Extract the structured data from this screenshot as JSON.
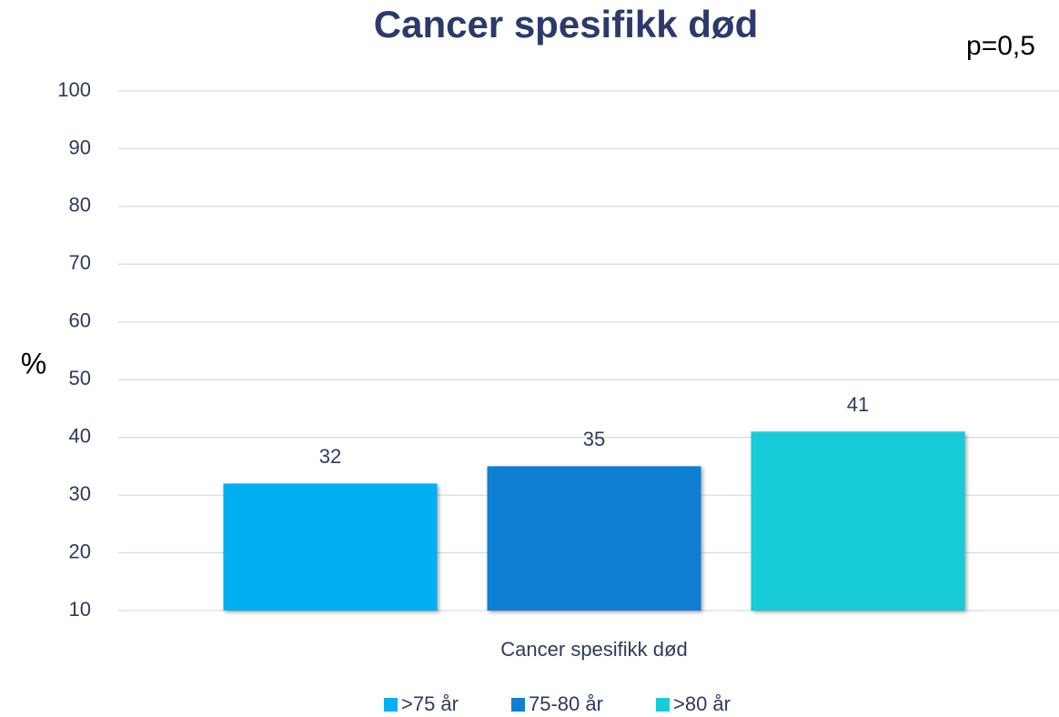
{
  "chart_data": {
    "type": "bar",
    "title": "Cancer spesifikk død",
    "annotation": "p=0,5",
    "y_label": "%",
    "categories": [
      "Cancer spesifikk død"
    ],
    "series": [
      {
        "name": ">75 år",
        "color": "#00b0f0",
        "values": [
          32
        ]
      },
      {
        "name": "75-80 år",
        "color": "#0f7fd3",
        "values": [
          35
        ]
      },
      {
        "name": ">80 år",
        "color": "#17ccd8",
        "values": [
          41
        ]
      }
    ],
    "ylim": [
      10,
      100
    ],
    "yticks": [
      10,
      20,
      30,
      40,
      50,
      60,
      70,
      80,
      90,
      100
    ],
    "grid": true,
    "legend": "bottom"
  }
}
